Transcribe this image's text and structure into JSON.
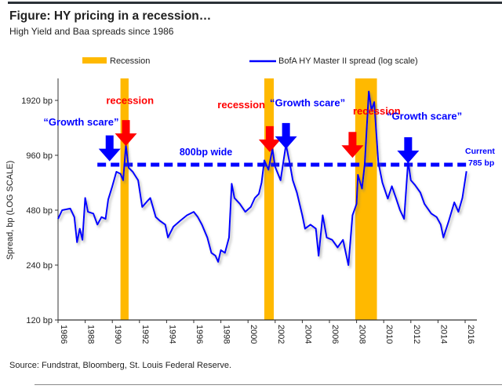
{
  "header": {
    "title": "Figure: HY pricing in a recession…",
    "subtitle": "High Yield and Baa spreads since 1986"
  },
  "footer": {
    "source": "Source: Fundstrat, Bloomberg, St. Louis Federal Reserve."
  },
  "chart_data": {
    "type": "line",
    "title": "Figure: HY pricing in a recession…",
    "subtitle": "High Yield and Baa spreads since 1986",
    "xlabel": "",
    "ylabel": "Spread, bp (LOG SCALE)",
    "yscale": "log2",
    "ylim": [
      120,
      2300
    ],
    "xlim": [
      1986,
      2016.9
    ],
    "y_ticks": [
      120,
      240,
      480,
      960,
      1920
    ],
    "y_tick_labels": [
      "120 bp",
      "240 bp",
      "480 bp",
      "960 bp",
      "1920 bp"
    ],
    "x_ticks": [
      "1986",
      "1988",
      "1990",
      "1992",
      "1994",
      "1996",
      "1998",
      "2000",
      "2002",
      "2004",
      "2006",
      "2008",
      "2010",
      "2012",
      "2014",
      "2016"
    ],
    "grid": false,
    "legend": {
      "placement": "top",
      "items": [
        {
          "label": "Recession",
          "color": "#ffb900",
          "kind": "band"
        },
        {
          "label": "BofA HY Master II spread (log scale)",
          "color": "#0000ff",
          "kind": "line"
        }
      ]
    },
    "recessions": [
      [
        1990.6,
        1991.2
      ],
      [
        2001.2,
        2001.9
      ],
      [
        2007.9,
        2009.5
      ]
    ],
    "threshold": {
      "value": 800,
      "label": "800bp wide",
      "color": "#0000ff"
    },
    "current": {
      "line1": "Current",
      "line2": "785 bp",
      "value": 785
    },
    "series": [
      {
        "name": "BofA HY Master II spread (log scale)",
        "color": "#0000ff",
        "x": [
          1986.0,
          1986.3,
          1986.9,
          1987.2,
          1987.4,
          1987.6,
          1987.8,
          1988.0,
          1988.2,
          1988.6,
          1988.9,
          1989.2,
          1989.5,
          1989.7,
          1990.0,
          1990.3,
          1990.6,
          1990.8,
          1991.0,
          1991.2,
          1991.5,
          1991.9,
          1992.2,
          1992.6,
          1992.8,
          1993.2,
          1993.5,
          1993.9,
          1994.1,
          1994.5,
          1995.0,
          1995.5,
          1996.0,
          1996.3,
          1996.6,
          1997.0,
          1997.3,
          1997.6,
          1997.8,
          1998.0,
          1998.3,
          1998.6,
          1998.8,
          1999.0,
          1999.4,
          1999.8,
          2000.2,
          2000.5,
          2000.8,
          2001.0,
          2001.2,
          2001.5,
          2001.8,
          2002.0,
          2002.4,
          2002.8,
          2003.1,
          2003.3,
          2003.6,
          2004.0,
          2004.2,
          2004.6,
          2005.0,
          2005.2,
          2005.5,
          2005.8,
          2006.2,
          2006.6,
          2007.0,
          2007.4,
          2007.7,
          2008.0,
          2008.1,
          2008.4,
          2008.6,
          2008.9,
          2009.1,
          2009.3,
          2009.6,
          2009.9,
          2010.3,
          2010.6,
          2010.9,
          2011.2,
          2011.5,
          2011.8,
          2012.0,
          2012.3,
          2012.7,
          2013.0,
          2013.5,
          2013.9,
          2014.2,
          2014.4,
          2014.8,
          2015.2,
          2015.5,
          2015.8,
          2016.1
        ],
        "y": [
          430,
          480,
          490,
          440,
          320,
          380,
          330,
          560,
          470,
          460,
          400,
          440,
          430,
          550,
          650,
          780,
          760,
          700,
          1090,
          820,
          780,
          700,
          500,
          540,
          560,
          440,
          420,
          400,
          340,
          390,
          420,
          450,
          470,
          440,
          400,
          340,
          280,
          270,
          250,
          290,
          280,
          340,
          670,
          560,
          520,
          470,
          500,
          560,
          590,
          680,
          900,
          800,
          1040,
          830,
          700,
          1100,
          850,
          700,
          600,
          450,
          380,
          400,
          380,
          270,
          450,
          340,
          330,
          300,
          330,
          240,
          450,
          520,
          750,
          630,
          860,
          2150,
          1700,
          1880,
          880,
          680,
          555,
          650,
          560,
          480,
          430,
          890,
          700,
          660,
          600,
          520,
          460,
          440,
          400,
          340,
          420,
          530,
          470,
          560,
          785
        ]
      }
    ],
    "annotations": [
      {
        "text": "recession",
        "color": "#ff0000",
        "kind": "label",
        "year": 1991.3,
        "bp": 1840
      },
      {
        "text": "“Growth scare”",
        "color": "#0000ff",
        "kind": "label",
        "year": 1987.7,
        "bp": 1400
      },
      {
        "text": "recession",
        "color": "#ff0000",
        "kind": "label",
        "year": 1999.5,
        "bp": 1740
      },
      {
        "text": "“Growth scare”",
        "color": "#0000ff",
        "kind": "label",
        "year": 2004.6,
        "bp": 1780
      },
      {
        "text": "recession",
        "color": "#ff0000",
        "kind": "label",
        "year": 2007.0,
        "bp": 1660
      },
      {
        "text": "“Growth scare”",
        "color": "#0000ff",
        "kind": "label",
        "year": 2013.0,
        "bp": 1510
      },
      {
        "kind": "arrow",
        "color": "#0000ff",
        "year": 1989.8,
        "bp": 890
      },
      {
        "kind": "arrow",
        "color": "#ff0000",
        "year": 1991.0,
        "bp": 1080
      },
      {
        "kind": "arrow",
        "color": "#ff0000",
        "year": 2001.6,
        "bp": 1000
      },
      {
        "kind": "arrow",
        "color": "#0000ff",
        "year": 2002.8,
        "bp": 1040
      },
      {
        "kind": "arrow",
        "color": "#ff0000",
        "year": 2007.7,
        "bp": 930
      },
      {
        "kind": "arrow",
        "color": "#0000ff",
        "year": 2011.8,
        "bp": 870
      }
    ]
  }
}
